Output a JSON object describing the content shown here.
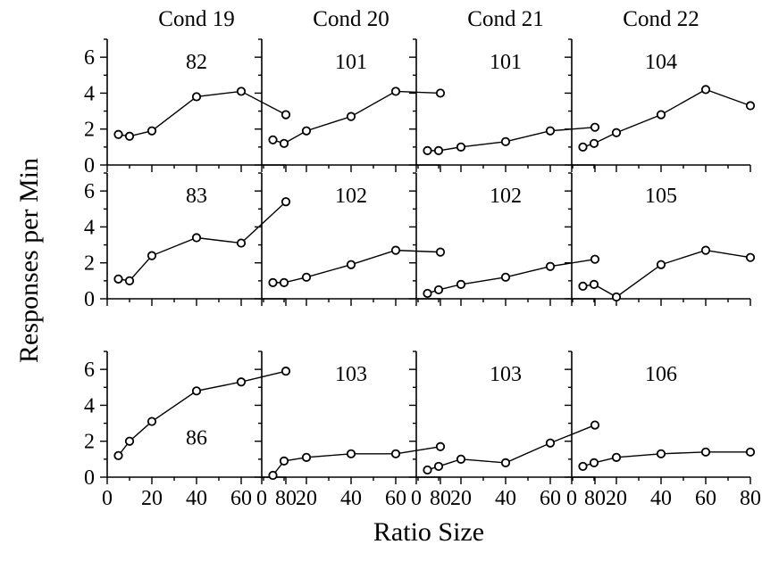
{
  "chart_data": {
    "type": "line",
    "layout": "3x4 grid of small multiples, shared axes",
    "xlabel": "Ratio Size",
    "ylabel": "Responses per Min",
    "xlim": [
      0,
      80
    ],
    "ylim": [
      0,
      7
    ],
    "x_ticks": [
      0,
      20,
      40,
      60,
      80
    ],
    "x_tick_labels": [
      "0",
      "20",
      "40",
      "60",
      "80"
    ],
    "y_ticks": [
      0,
      2,
      4,
      6
    ],
    "y_tick_labels": [
      "0",
      "2",
      "4",
      "6"
    ],
    "grid": false,
    "marker": "open circle",
    "columns": [
      "Cond 19",
      "Cond 20",
      "Cond 21",
      "Cond 22"
    ],
    "x": [
      5,
      10,
      20,
      40,
      60,
      80
    ],
    "panels": [
      {
        "row": 0,
        "col": 0,
        "subject": "82",
        "values": [
          1.7,
          1.6,
          1.9,
          3.8,
          4.1,
          2.8
        ]
      },
      {
        "row": 0,
        "col": 1,
        "subject": "101",
        "values": [
          1.4,
          1.2,
          1.9,
          2.7,
          4.1,
          4.0
        ]
      },
      {
        "row": 0,
        "col": 2,
        "subject": "101",
        "values": [
          0.8,
          0.8,
          1.0,
          1.3,
          1.9,
          2.1
        ]
      },
      {
        "row": 0,
        "col": 3,
        "subject": "104",
        "values": [
          1.0,
          1.2,
          1.8,
          2.8,
          4.2,
          3.3
        ]
      },
      {
        "row": 1,
        "col": 0,
        "subject": "83",
        "values": [
          1.1,
          1.0,
          2.4,
          3.4,
          3.1,
          5.4
        ]
      },
      {
        "row": 1,
        "col": 1,
        "subject": "102",
        "values": [
          0.9,
          0.9,
          1.2,
          1.9,
          2.7,
          2.6
        ]
      },
      {
        "row": 1,
        "col": 2,
        "subject": "102",
        "values": [
          0.3,
          0.5,
          0.8,
          1.2,
          1.8,
          2.2
        ]
      },
      {
        "row": 1,
        "col": 3,
        "subject": "105",
        "values": [
          0.7,
          0.8,
          0.1,
          1.9,
          2.7,
          2.3
        ]
      },
      {
        "row": 2,
        "col": 0,
        "subject": "86",
        "values": [
          1.2,
          2.0,
          3.1,
          4.8,
          5.3,
          5.9
        ]
      },
      {
        "row": 2,
        "col": 1,
        "subject": "103",
        "values": [
          0.1,
          0.9,
          1.1,
          1.3,
          1.3,
          1.7
        ]
      },
      {
        "row": 2,
        "col": 2,
        "subject": "103",
        "values": [
          0.4,
          0.6,
          1.0,
          0.8,
          1.9,
          2.9
        ]
      },
      {
        "row": 2,
        "col": 3,
        "subject": "106",
        "values": [
          0.6,
          0.8,
          1.1,
          1.3,
          1.4,
          1.4
        ]
      }
    ]
  }
}
